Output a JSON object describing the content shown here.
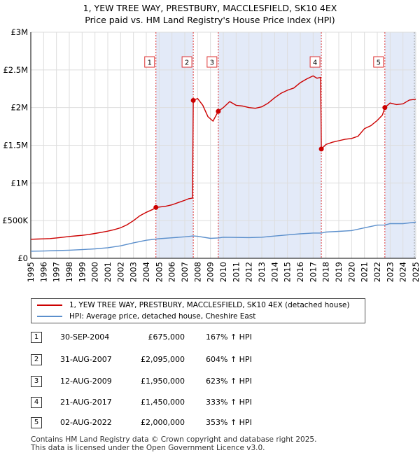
{
  "title_line1": "1, YEW TREE WAY, PRESTBURY, MACCLESFIELD, SK10 4EX",
  "title_line2": "Price paid vs. HM Land Registry's House Price Index (HPI)",
  "legend": {
    "property": "1, YEW TREE WAY, PRESTBURY, MACCLESFIELD, SK10 4EX (detached house)",
    "hpi": "HPI: Average price, detached house, Cheshire East"
  },
  "sales": [
    {
      "num": "1",
      "date": "30-SEP-2004",
      "price": "£675,000",
      "hpi": "167% ↑ HPI"
    },
    {
      "num": "2",
      "date": "31-AUG-2007",
      "price": "£2,095,000",
      "hpi": "604% ↑ HPI"
    },
    {
      "num": "3",
      "date": "12-AUG-2009",
      "price": "£1,950,000",
      "hpi": "623% ↑ HPI"
    },
    {
      "num": "4",
      "date": "21-AUG-2017",
      "price": "£1,450,000",
      "hpi": "333% ↑ HPI"
    },
    {
      "num": "5",
      "date": "02-AUG-2022",
      "price": "£2,000,000",
      "hpi": "353% ↑ HPI"
    }
  ],
  "footer": {
    "line1": "Contains HM Land Registry data © Crown copyright and database right 2025.",
    "line2": "This data is licensed under the Open Government Licence v3.0."
  },
  "chart_data": {
    "type": "line",
    "x_range": [
      1995,
      2025
    ],
    "y_range": [
      0,
      3000000
    ],
    "y_ticks": [
      {
        "value": 0,
        "label": "£0"
      },
      {
        "value": 500000,
        "label": "£500K"
      },
      {
        "value": 1000000,
        "label": "£1M"
      },
      {
        "value": 1500000,
        "label": "£1.5M"
      },
      {
        "value": 2000000,
        "label": "£2M"
      },
      {
        "value": 2500000,
        "label": "£2.5M"
      },
      {
        "value": 3000000,
        "label": "£3M"
      }
    ],
    "x_ticks": [
      "1995",
      "1996",
      "1997",
      "1998",
      "1999",
      "2000",
      "2001",
      "2002",
      "2003",
      "2004",
      "2005",
      "2006",
      "2007",
      "2008",
      "2009",
      "2010",
      "2011",
      "2012",
      "2013",
      "2014",
      "2015",
      "2016",
      "2017",
      "2018",
      "2019",
      "2020",
      "2021",
      "2022",
      "2023",
      "2024",
      "2025"
    ],
    "grid": true,
    "colors": {
      "property": "#cc0000",
      "hpi": "#5b8fcc",
      "shade": "#e3eaf8",
      "marker_line": "#dd3333"
    },
    "series": [
      {
        "name": "1, YEW TREE WAY, PRESTBURY, MACCLESFIELD, SK10 4EX (detached house)",
        "points": [
          [
            1995.0,
            253000
          ],
          [
            1995.5,
            255000
          ],
          [
            1996.0,
            258000
          ],
          [
            1996.5,
            262000
          ],
          [
            1997.0,
            270000
          ],
          [
            1997.5,
            280000
          ],
          [
            1998.0,
            290000
          ],
          [
            1998.5,
            297000
          ],
          [
            1999.0,
            305000
          ],
          [
            1999.5,
            315000
          ],
          [
            2000.0,
            330000
          ],
          [
            2000.5,
            345000
          ],
          [
            2001.0,
            360000
          ],
          [
            2001.5,
            380000
          ],
          [
            2002.0,
            405000
          ],
          [
            2002.5,
            445000
          ],
          [
            2003.0,
            500000
          ],
          [
            2003.5,
            565000
          ],
          [
            2004.0,
            610000
          ],
          [
            2004.5,
            648000
          ],
          [
            2004.75,
            675000
          ],
          [
            2005.0,
            680000
          ],
          [
            2005.5,
            690000
          ],
          [
            2006.0,
            710000
          ],
          [
            2006.5,
            740000
          ],
          [
            2007.0,
            770000
          ],
          [
            2007.3,
            790000
          ],
          [
            2007.6,
            800000
          ],
          [
            2007.66,
            2095000
          ],
          [
            2008.0,
            2120000
          ],
          [
            2008.4,
            2030000
          ],
          [
            2008.8,
            1880000
          ],
          [
            2009.2,
            1820000
          ],
          [
            2009.61,
            1950000
          ],
          [
            2010.0,
            2000000
          ],
          [
            2010.5,
            2080000
          ],
          [
            2011.0,
            2030000
          ],
          [
            2011.5,
            2020000
          ],
          [
            2012.0,
            2000000
          ],
          [
            2012.5,
            1990000
          ],
          [
            2013.0,
            2010000
          ],
          [
            2013.5,
            2060000
          ],
          [
            2014.0,
            2130000
          ],
          [
            2014.5,
            2190000
          ],
          [
            2015.0,
            2230000
          ],
          [
            2015.5,
            2260000
          ],
          [
            2016.0,
            2330000
          ],
          [
            2016.5,
            2380000
          ],
          [
            2017.0,
            2420000
          ],
          [
            2017.3,
            2390000
          ],
          [
            2017.58,
            2400000
          ],
          [
            2017.64,
            1450000
          ],
          [
            2018.0,
            1510000
          ],
          [
            2018.5,
            1540000
          ],
          [
            2019.0,
            1560000
          ],
          [
            2019.5,
            1580000
          ],
          [
            2020.0,
            1590000
          ],
          [
            2020.5,
            1620000
          ],
          [
            2021.0,
            1720000
          ],
          [
            2021.5,
            1760000
          ],
          [
            2022.0,
            1830000
          ],
          [
            2022.4,
            1900000
          ],
          [
            2022.59,
            2000000
          ],
          [
            2023.0,
            2060000
          ],
          [
            2023.5,
            2040000
          ],
          [
            2024.0,
            2050000
          ],
          [
            2024.5,
            2100000
          ],
          [
            2025.0,
            2110000
          ]
        ]
      },
      {
        "name": "HPI: Average price, detached house, Cheshire East",
        "points": [
          [
            1995.0,
            94000
          ],
          [
            1996.0,
            97000
          ],
          [
            1997.0,
            102000
          ],
          [
            1998.0,
            108000
          ],
          [
            1999.0,
            115000
          ],
          [
            2000.0,
            125000
          ],
          [
            2001.0,
            140000
          ],
          [
            2002.0,
            165000
          ],
          [
            2003.0,
            205000
          ],
          [
            2004.0,
            240000
          ],
          [
            2005.0,
            260000
          ],
          [
            2006.0,
            272000
          ],
          [
            2007.0,
            285000
          ],
          [
            2007.66,
            296000
          ],
          [
            2008.0,
            292000
          ],
          [
            2009.0,
            265000
          ],
          [
            2009.61,
            270000
          ],
          [
            2010.0,
            280000
          ],
          [
            2011.0,
            277000
          ],
          [
            2012.0,
            275000
          ],
          [
            2013.0,
            280000
          ],
          [
            2014.0,
            295000
          ],
          [
            2015.0,
            310000
          ],
          [
            2016.0,
            325000
          ],
          [
            2017.0,
            335000
          ],
          [
            2017.64,
            335000
          ],
          [
            2018.0,
            348000
          ],
          [
            2019.0,
            358000
          ],
          [
            2020.0,
            368000
          ],
          [
            2021.0,
            405000
          ],
          [
            2022.0,
            440000
          ],
          [
            2022.59,
            442000
          ],
          [
            2023.0,
            460000
          ],
          [
            2024.0,
            460000
          ],
          [
            2025.0,
            480000
          ]
        ]
      }
    ],
    "sales": [
      {
        "label": "1",
        "x": 2004.75,
        "y": 675000
      },
      {
        "label": "2",
        "x": 2007.66,
        "y": 2095000
      },
      {
        "label": "3",
        "x": 2009.61,
        "y": 1950000
      },
      {
        "label": "4",
        "x": 2017.64,
        "y": 1450000
      },
      {
        "label": "5",
        "x": 2022.59,
        "y": 2000000
      }
    ],
    "shaded_ranges": [
      [
        2004.75,
        2007.66
      ],
      [
        2009.61,
        2017.64
      ],
      [
        2022.59,
        2025
      ]
    ]
  }
}
